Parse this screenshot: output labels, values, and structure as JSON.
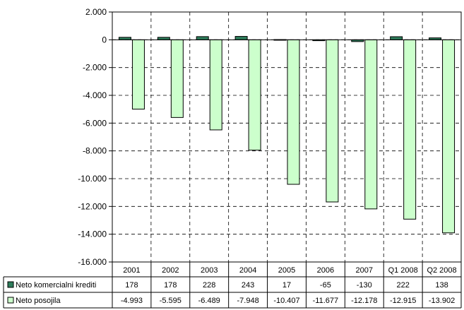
{
  "chart_data": {
    "type": "bar",
    "title": "",
    "xlabel": "",
    "ylabel": "",
    "categories": [
      "2001",
      "2002",
      "2003",
      "2004",
      "2005",
      "2006",
      "2007",
      "Q1 2008",
      "Q2 2008"
    ],
    "series": [
      {
        "name": "Neto komercialni krediti",
        "color": "#2e7d5b",
        "values": [
          178,
          178,
          228,
          243,
          17,
          -65,
          -130,
          222,
          138
        ],
        "labels": [
          "178",
          "178",
          "228",
          "243",
          "17",
          "-65",
          "-130",
          "222",
          "138"
        ]
      },
      {
        "name": "Neto posojila",
        "color": "#ccffcc",
        "values": [
          -4993,
          -5595,
          -6489,
          -7948,
          -10407,
          -11677,
          -12178,
          -12915,
          -13902
        ],
        "labels": [
          "-4.993",
          "-5.595",
          "-6.489",
          "-7.948",
          "-10.407",
          "-11.677",
          "-12.178",
          "-12.915",
          "-13.902"
        ]
      }
    ],
    "ylim": [
      -16000,
      2000
    ],
    "yticks": [
      2000,
      0,
      -2000,
      -4000,
      -6000,
      -8000,
      -10000,
      -12000,
      -14000,
      -16000
    ],
    "ytick_labels": [
      "2.000",
      "0",
      "-2.000",
      "-4.000",
      "-6.000",
      "-8.000",
      "-10.000",
      "-12.000",
      "-14.000",
      "-16.000"
    ],
    "grid": "dashed",
    "legend": "data-table"
  }
}
